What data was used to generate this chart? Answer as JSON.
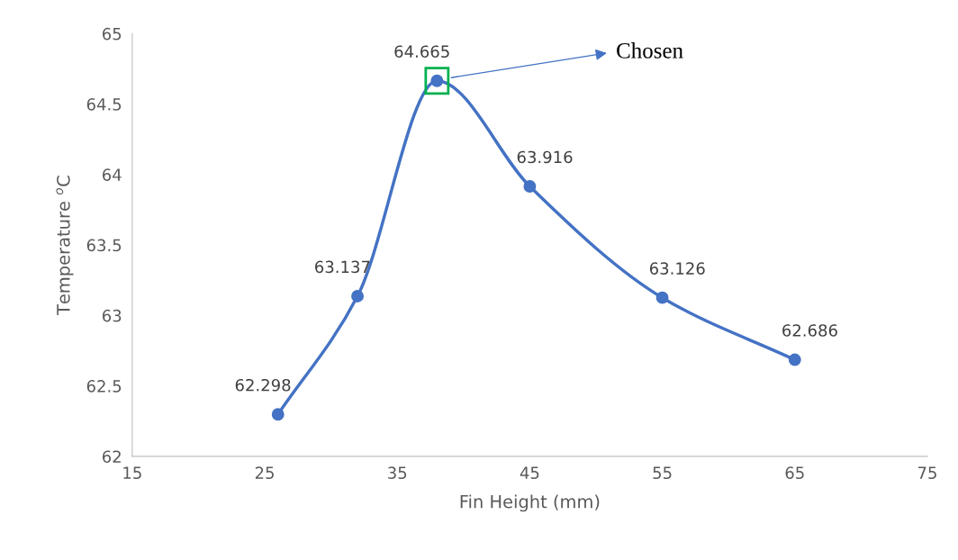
{
  "chart_data": {
    "type": "line",
    "xlabel": "Fin Height (mm)",
    "ylabel": "Temperature $^{o}$C",
    "x": [
      26,
      32,
      38,
      45,
      55,
      65
    ],
    "series": [
      {
        "color": "#4472c4",
        "values": [
          62.298,
          63.137,
          64.665,
          63.916,
          63.126,
          62.686
        ]
      }
    ],
    "data_labels": true,
    "marker": "circle",
    "line_style": "solid",
    "grid": false,
    "legend": false,
    "xlim": [
      15,
      75
    ],
    "xticks": [
      15,
      25,
      35,
      45,
      55,
      65,
      75
    ],
    "ylim": [
      62,
      65
    ],
    "yticks": [
      62,
      62.5,
      63,
      63.5,
      64,
      64.5,
      65
    ],
    "annotations": [
      "Chosen"
    ]
  }
}
